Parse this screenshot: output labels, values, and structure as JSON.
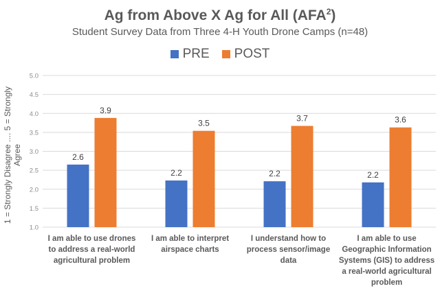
{
  "chart_data": {
    "type": "bar",
    "title": "Ag from Above X Ag for All (AFA",
    "title_superscript": "2",
    "title_close": ")",
    "subtitle": "Student Survey Data from Three 4-H Youth Drone Camps (n=48)",
    "ylabel": "1 = Strongly Disagree .... 5 = Strongly Agree",
    "xlabel": "",
    "ylim": [
      1.0,
      5.0
    ],
    "yticks": [
      "1.0",
      "1.5",
      "2.0",
      "2.5",
      "3.0",
      "3.5",
      "4.0",
      "4.5",
      "5.0"
    ],
    "grid": true,
    "legend_position": "top",
    "categories": [
      "I am able to use drones to address a real-world agricultural problem",
      "I am able to interpret airspace charts",
      "I understand how to process sensor/image data",
      "I am able to use Geographic Information Systems (GIS) to address a real-world agricultural problem"
    ],
    "series": [
      {
        "name": "PRE",
        "color": "#4472C4",
        "values": [
          2.65,
          2.23,
          2.21,
          2.18
        ],
        "labels": [
          "2.6",
          "2.2",
          "2.2",
          "2.2"
        ]
      },
      {
        "name": "POST",
        "color": "#ED7D31",
        "values": [
          3.88,
          3.54,
          3.67,
          3.63
        ],
        "labels": [
          "3.9",
          "3.5",
          "3.7",
          "3.6"
        ]
      }
    ]
  }
}
